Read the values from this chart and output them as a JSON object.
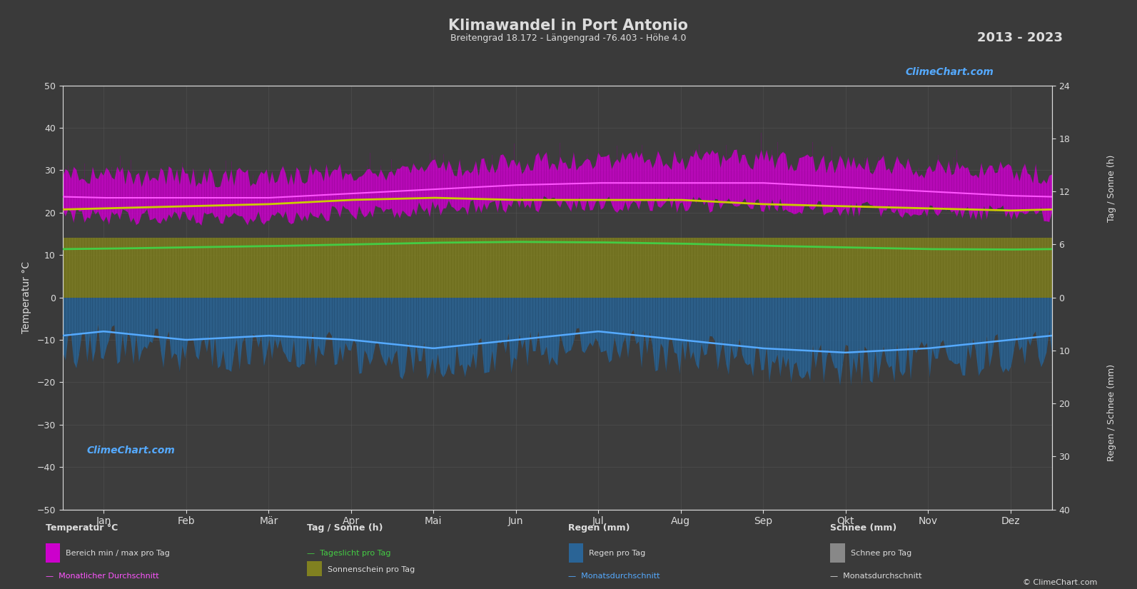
{
  "title": "Klimawandel in Port Antonio",
  "subtitle": "Breitengrad 18.172 - Längengrad -76.403 - Höhe 4.0",
  "year_range": "2013 - 2023",
  "bg_color": "#3a3a3a",
  "plot_bg_color": "#3d3d3d",
  "grid_color": "#555555",
  "text_color": "#dddddd",
  "months": [
    "Jan",
    "Feb",
    "Mär",
    "Apr",
    "Mai",
    "Jun",
    "Jul",
    "Aug",
    "Sep",
    "Okt",
    "Nov",
    "Dez"
  ],
  "temp_ylim": [
    -50,
    50
  ],
  "temp_min_monthly": [
    20,
    20,
    20,
    21,
    22,
    23,
    23,
    23,
    23,
    22,
    21,
    21
  ],
  "temp_max_monthly": [
    27,
    27,
    27,
    28,
    29,
    30,
    31,
    31,
    31,
    30,
    29,
    28
  ],
  "temp_mean_monthly": [
    23.5,
    23.5,
    23.5,
    24.5,
    25.5,
    26.5,
    27,
    27,
    27,
    26,
    25,
    24
  ],
  "sunshine_monthly_avg": [
    21,
    21.5,
    22,
    23,
    23.5,
    23,
    23,
    23,
    22,
    21.5,
    21,
    20.5
  ],
  "daylight_monthly": [
    11.5,
    11.8,
    12.1,
    12.5,
    12.9,
    13.1,
    13.0,
    12.7,
    12.2,
    11.8,
    11.4,
    11.3
  ],
  "rain_daily_avg_neg": [
    -8,
    -10,
    -9,
    -10,
    -12,
    -10,
    -8,
    -10,
    -12,
    -13,
    -12,
    -10
  ],
  "sun_fill_color": "#808020",
  "rain_fill_color": "#2a6496",
  "temp_band_color": "#cc00cc",
  "temp_mean_color": "#ff55ff",
  "sunshine_line_color": "#cccc00",
  "daylight_line_color": "#44cc44",
  "rain_mean_color": "#55aaff",
  "copyright": "© ClimeChart.com",
  "watermark": "ClimeChart.com"
}
